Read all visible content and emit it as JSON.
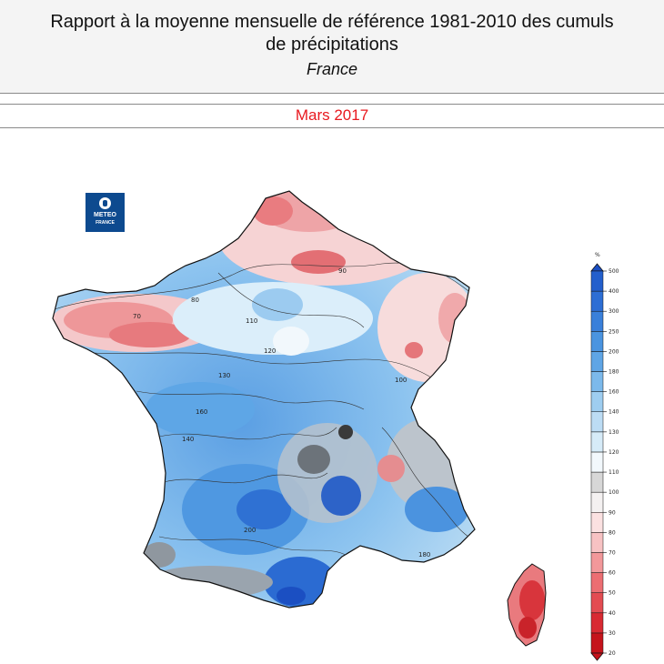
{
  "header": {
    "title_line1": "Rapport à la moyenne mensuelle de référence 1981-2010 des cumuls",
    "title_line2": "de précipitations",
    "subtitle": "France"
  },
  "period": "Mars 2017",
  "logo": {
    "line1": "METEO",
    "line2": "FRANCE"
  },
  "legend": {
    "unit": "%",
    "levels": [
      20,
      30,
      40,
      50,
      60,
      70,
      80,
      90,
      100,
      110,
      120,
      130,
      140,
      160,
      180,
      200,
      250,
      300,
      400,
      500
    ],
    "colors": [
      "#c5141c",
      "#d82a32",
      "#e34c52",
      "#ec6e72",
      "#f2989a",
      "#f7c2c3",
      "#fbe1e1",
      "#f4f1f1",
      "#d7d7d7",
      "#f2f8fc",
      "#d6ebf8",
      "#bcdcf4",
      "#9ecdf0",
      "#7cb9eb",
      "#5fa5e5",
      "#4a94e0",
      "#3a80da",
      "#2d6ed4",
      "#235fcc",
      "#1b4fc2"
    ]
  },
  "contour_labels": [
    "70",
    "80",
    "90",
    "100",
    "110",
    "120",
    "130",
    "140",
    "160",
    "180",
    "200"
  ],
  "colors": {
    "period": "#e8191f",
    "logo": "#0d4a8f"
  }
}
